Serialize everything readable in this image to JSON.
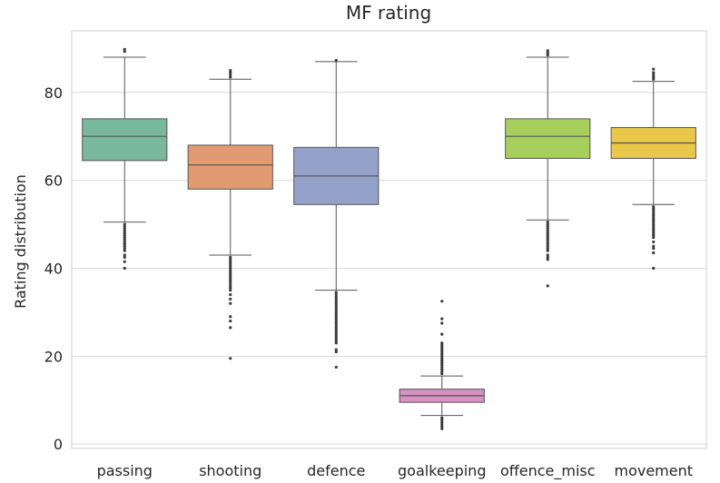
{
  "chart_data": {
    "type": "box",
    "title": "MF rating",
    "xlabel": "",
    "ylabel": "Rating distribution",
    "ylim": [
      -1,
      94
    ],
    "yticks": [
      0,
      20,
      40,
      60,
      80
    ],
    "grid": true,
    "categories": [
      "passing",
      "shooting",
      "defence",
      "goalkeeping",
      "offence_misc",
      "movement"
    ],
    "boxes": [
      {
        "name": "passing",
        "color": "#7ab89d",
        "whisker_low": 50.5,
        "q1": 64.5,
        "median": 70,
        "q3": 74,
        "whisker_high": 88,
        "outliers": [
          40,
          41.5,
          42.5,
          43,
          44,
          44.5,
          45,
          45.5,
          46,
          46.5,
          47,
          47.5,
          48,
          48.5,
          49,
          49.5,
          50,
          89.3,
          89.8
        ]
      },
      {
        "name": "shooting",
        "color": "#e29a73",
        "whisker_low": 43,
        "q1": 58,
        "median": 63.5,
        "q3": 68,
        "whisker_high": 83,
        "outliers": [
          19.5,
          26.5,
          28,
          29,
          32,
          33,
          34,
          35,
          35.5,
          36,
          36.5,
          37,
          37.5,
          38,
          38.5,
          39,
          39.5,
          40,
          40.5,
          41,
          41.5,
          42,
          42.5,
          83.5,
          84,
          84.5,
          85
        ]
      },
      {
        "name": "defence",
        "color": "#94a1c9",
        "whisker_low": 35,
        "q1": 54.5,
        "median": 61,
        "q3": 67.5,
        "whisker_high": 87,
        "outliers": [
          17.5,
          21,
          21.5,
          23,
          23.5,
          24,
          24.5,
          25,
          25.5,
          26,
          26.5,
          27,
          27.5,
          28,
          28.5,
          29,
          29.5,
          30,
          30.5,
          31,
          31.5,
          32,
          32.5,
          33,
          33.5,
          34,
          34.5,
          87.3
        ]
      },
      {
        "name": "goalkeeping",
        "color": "#d690c1",
        "whisker_low": 6.5,
        "q1": 9.5,
        "median": 11,
        "q3": 12.5,
        "whisker_high": 15.5,
        "outliers": [
          3.5,
          4,
          4.5,
          5,
          5.5,
          6,
          16,
          16.5,
          17,
          17.5,
          18,
          18.5,
          19,
          19.5,
          20,
          20.5,
          21,
          21.5,
          22,
          22.5,
          23,
          25,
          27.5,
          28.5,
          32.5
        ]
      },
      {
        "name": "offence_misc",
        "color": "#a8cf5e",
        "whisker_low": 51,
        "q1": 65,
        "median": 70,
        "q3": 74,
        "whisker_high": 88,
        "outliers": [
          36,
          42,
          42.5,
          43,
          44,
          44.5,
          45,
          45.5,
          46,
          46.5,
          47,
          47.5,
          48,
          48.5,
          49,
          49.5,
          50,
          50.5,
          88.5,
          89,
          89.5
        ]
      },
      {
        "name": "movement",
        "color": "#e8c74a",
        "whisker_low": 54.5,
        "q1": 65,
        "median": 68.5,
        "q3": 72,
        "whisker_high": 82.5,
        "outliers": [
          40,
          43.5,
          44.5,
          45,
          46,
          47,
          47.5,
          48,
          48.5,
          49,
          49.5,
          50,
          50.5,
          51,
          51.5,
          52,
          52.5,
          53,
          53.5,
          54,
          83,
          83.5,
          84,
          84.5,
          85.3
        ]
      }
    ]
  }
}
